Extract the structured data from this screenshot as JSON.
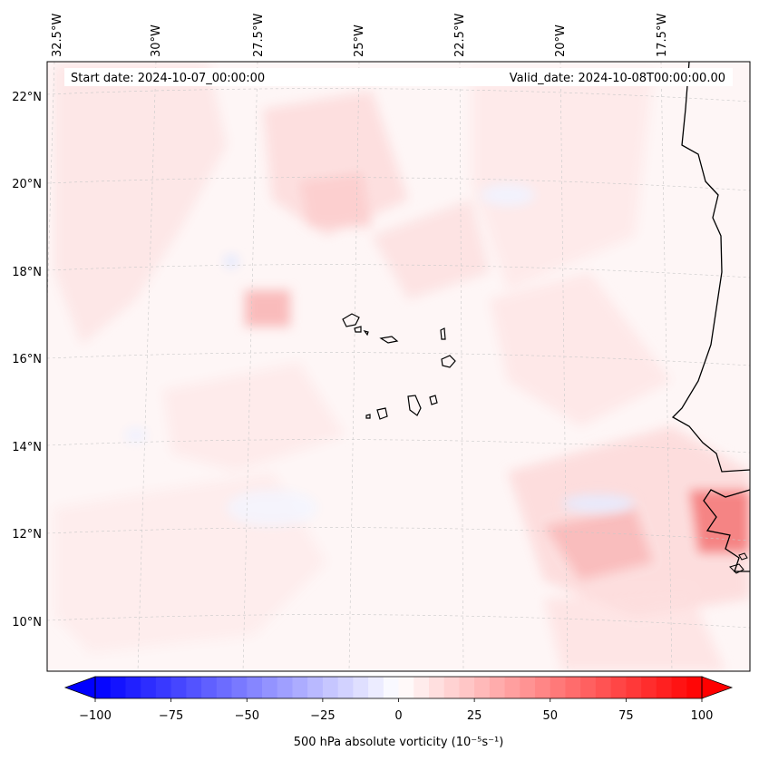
{
  "map": {
    "title_left": "Start date: 2024-10-07_00:00:00",
    "title_right": "Valid_date: 2024-10-08T00:00:00.00",
    "lon_labels": [
      "32.5°W",
      "30°W",
      "27.5°W",
      "25°W",
      "22.5°W",
      "20°W",
      "17.5°W"
    ],
    "lat_labels": [
      "22°N",
      "20°N",
      "18°N",
      "16°N",
      "14°N",
      "12°N",
      "10°N"
    ],
    "field": "500 hPa absolute vorticity",
    "units": "(10⁻⁵s⁻¹)",
    "colormap": "bwr",
    "color_neg": "#0000ff",
    "color_mid": "#ffffff",
    "color_pos": "#ff0000"
  },
  "colorbar": {
    "ticks": [
      "−100",
      "−75",
      "−50",
      "−25",
      "0",
      "25",
      "50",
      "75",
      "100"
    ],
    "tick_values": [
      -100,
      -75,
      -50,
      -25,
      0,
      25,
      50,
      75,
      100
    ],
    "min": -100,
    "max": 100,
    "step": 5,
    "label": "500 hPa absolute vorticity (10⁻⁵s⁻¹)"
  }
}
